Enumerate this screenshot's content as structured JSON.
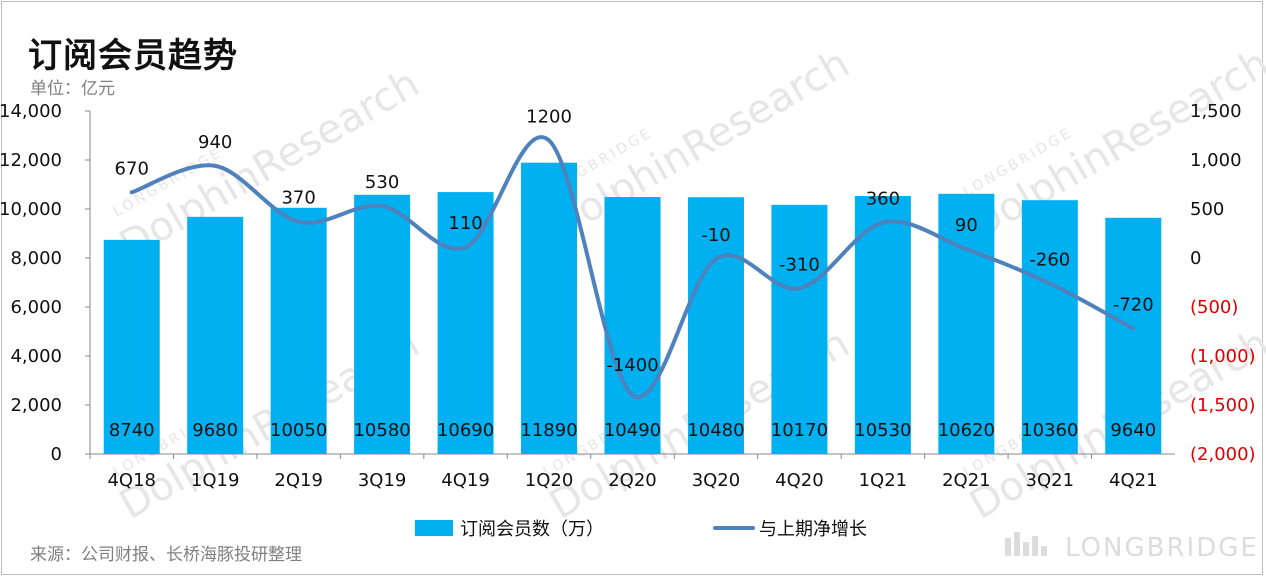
{
  "title": "订阅会员趋势",
  "unit": "单位：亿元",
  "source": "来源：公司财报、长桥海豚投研整理",
  "brand": "LONGBRIDGE",
  "watermark": {
    "main": "DolphinResearch",
    "sub": "LONGBRIDGE"
  },
  "chart_data": {
    "type": "bar",
    "categories": [
      "4Q18",
      "1Q19",
      "2Q19",
      "3Q19",
      "4Q19",
      "1Q20",
      "2Q20",
      "3Q20",
      "4Q20",
      "1Q21",
      "2Q21",
      "3Q21",
      "4Q21"
    ],
    "series": [
      {
        "name": "订阅会员数（万）",
        "type": "bar",
        "axis": "left",
        "color": "#00b0f0",
        "values": [
          8740,
          9680,
          10050,
          10580,
          10690,
          11890,
          10490,
          10480,
          10170,
          10530,
          10620,
          10360,
          9640
        ]
      },
      {
        "name": "与上期净增长",
        "type": "line",
        "axis": "right",
        "color": "#4f81bd",
        "values": [
          670,
          940,
          370,
          530,
          110,
          1200,
          -1400,
          -10,
          -310,
          360,
          90,
          -260,
          -720
        ],
        "labels": [
          "670",
          "940",
          "370",
          "530",
          "110",
          "1200",
          "-1400",
          "-10",
          "-310",
          "360",
          "90",
          "-260",
          "-720"
        ]
      }
    ],
    "ylim": [
      0,
      14000
    ],
    "yticks": [
      "0",
      "2,000",
      "4,000",
      "6,000",
      "8,000",
      "10,000",
      "12,000",
      "14,000"
    ],
    "y2lim": [
      -2000,
      1500
    ],
    "y2ticks": [
      {
        "label": "(2,000)",
        "value": -2000,
        "negative": true
      },
      {
        "label": "(1,500)",
        "value": -1500,
        "negative": true
      },
      {
        "label": "(1,000)",
        "value": -1000,
        "negative": true
      },
      {
        "label": "(500)",
        "value": -500,
        "negative": true
      },
      {
        "label": "0",
        "value": 0,
        "negative": false
      },
      {
        "label": "500",
        "value": 500,
        "negative": false
      },
      {
        "label": "1,000",
        "value": 1000,
        "negative": false
      },
      {
        "label": "1,500",
        "value": 1500,
        "negative": false
      }
    ],
    "negative_tick_color": "#e00000",
    "legend_position": "bottom",
    "grid": false
  }
}
